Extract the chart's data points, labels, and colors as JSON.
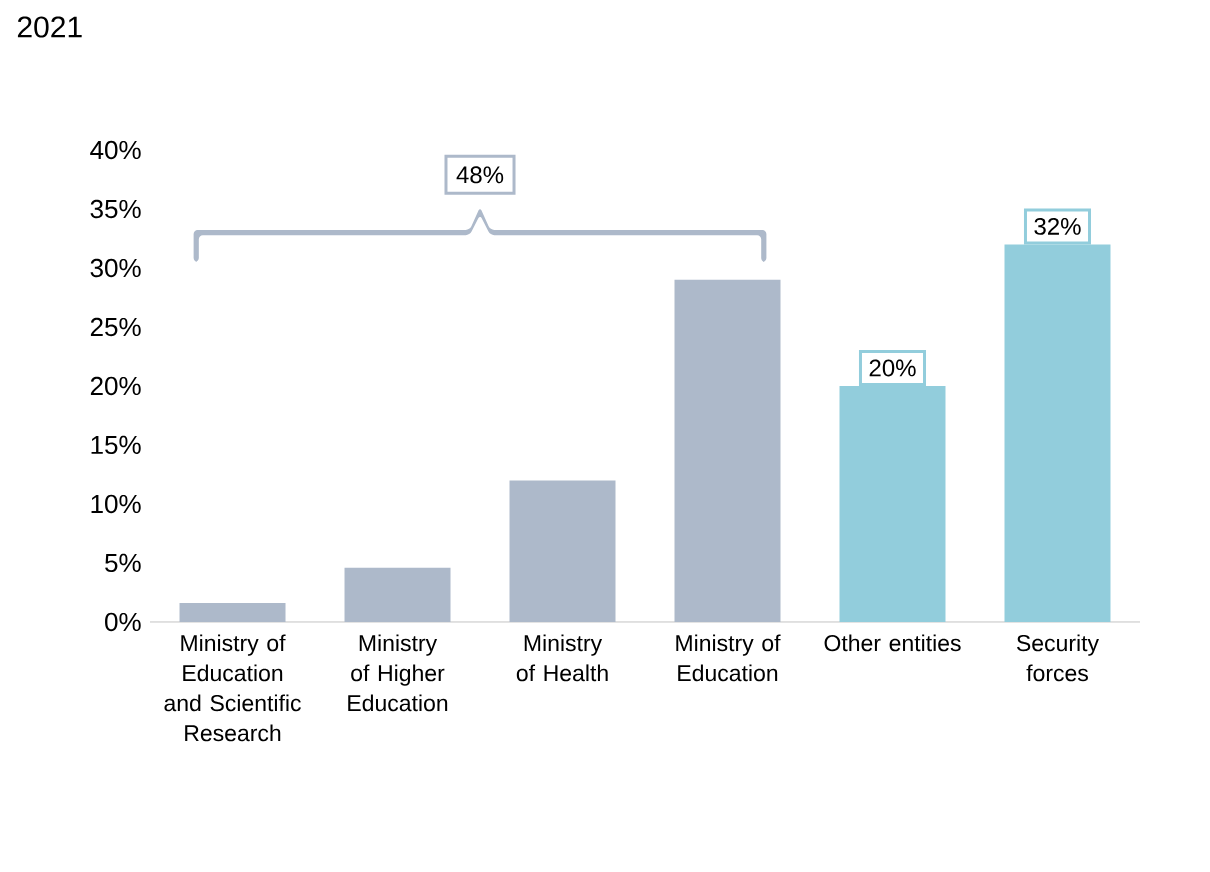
{
  "chart_data": {
    "type": "bar",
    "title": "2021",
    "categories": [
      "Ministry of Education and Scientific Research",
      "Ministry of Higher Education",
      "Ministry of Health",
      "Ministry of Education",
      "Other entities",
      "Security forces"
    ],
    "values": [
      1.6,
      4.6,
      12,
      29,
      20,
      32
    ],
    "colors": [
      "#adb9ca",
      "#adb9ca",
      "#adb9ca",
      "#adb9ca",
      "#92cddc",
      "#92cddc"
    ],
    "value_labels": [
      null,
      null,
      null,
      null,
      "20%",
      "32%"
    ],
    "annotations": [
      "48%"
    ],
    "ylim": [
      0,
      40
    ],
    "yticks": [
      {
        "value": 0,
        "label": "0%"
      },
      {
        "value": 5,
        "label": "5%"
      },
      {
        "value": 10,
        "label": "10%"
      },
      {
        "value": 15,
        "label": "15%"
      },
      {
        "value": 20,
        "label": "20%"
      },
      {
        "value": 25,
        "label": "25%"
      },
      {
        "value": 30,
        "label": "30%"
      },
      {
        "value": 35,
        "label": "35%"
      },
      {
        "value": 40,
        "label": "40%"
      }
    ],
    "grid": false
  }
}
